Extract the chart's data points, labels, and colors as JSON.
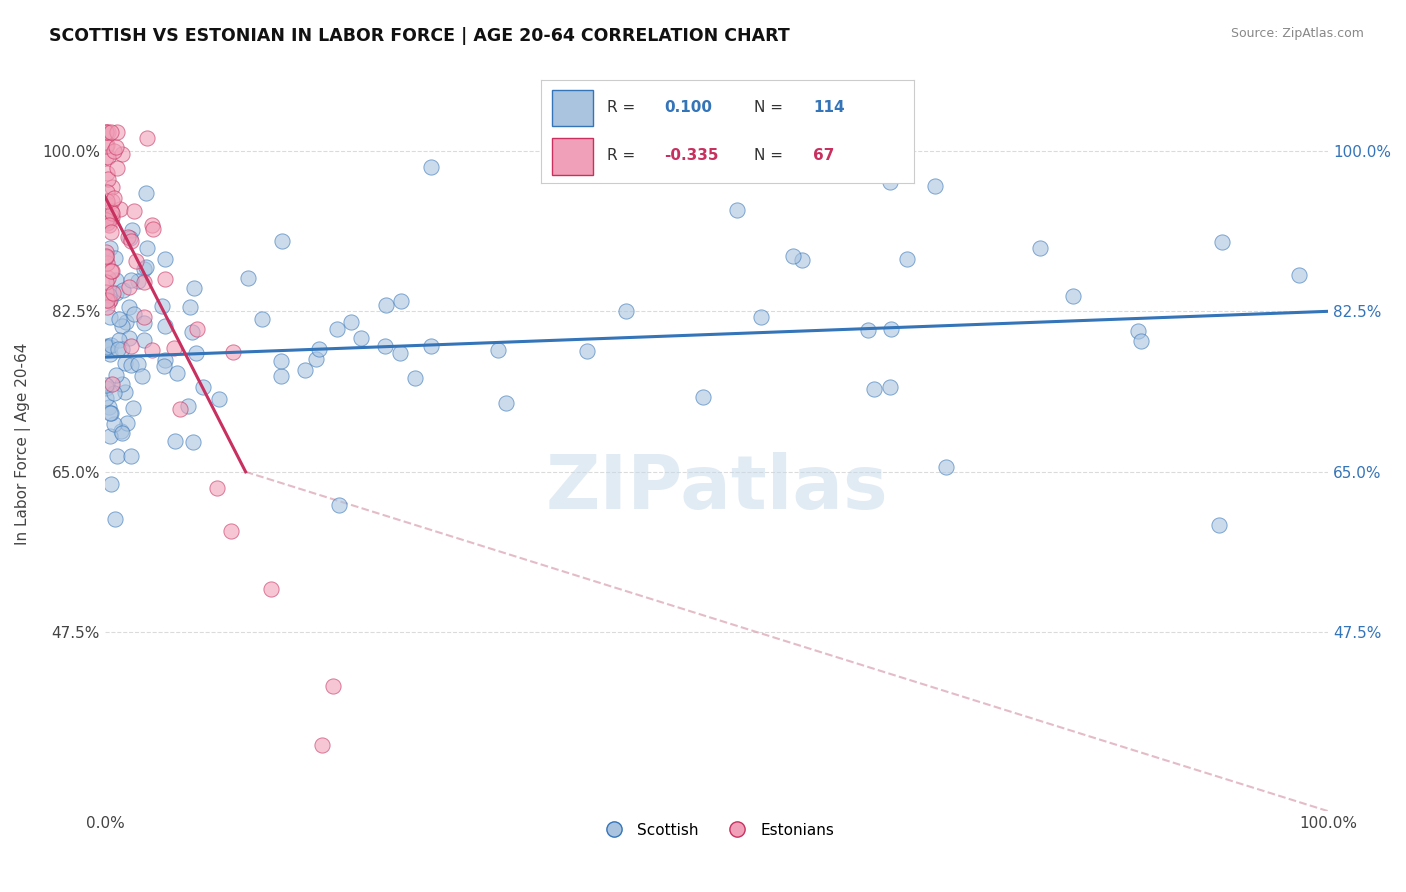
{
  "title": "SCOTTISH VS ESTONIAN IN LABOR FORCE | AGE 20-64 CORRELATION CHART",
  "source_text": "Source: ZipAtlas.com",
  "ylabel": "In Labor Force | Age 20-64",
  "xlim": [
    0.0,
    1.0
  ],
  "ylim": [
    0.28,
    1.08
  ],
  "x_tick_labels": [
    "0.0%",
    "100.0%"
  ],
  "y_tick_labels": [
    "47.5%",
    "65.0%",
    "82.5%",
    "100.0%"
  ],
  "y_tick_positions": [
    0.475,
    0.65,
    0.825,
    1.0
  ],
  "watermark": "ZIPatlas",
  "legend_entries": [
    {
      "label": "Scottish",
      "R": "0.100",
      "N": "114"
    },
    {
      "label": "Estonians",
      "R": "-0.335",
      "N": "67"
    }
  ],
  "scottish_trend": [
    0.0,
    0.775,
    1.0,
    0.825
  ],
  "estonian_trend_solid": [
    0.0,
    0.95,
    0.115,
    0.65
  ],
  "estonian_trend_dashed": [
    0.115,
    0.65,
    1.0,
    0.28
  ],
  "bg_color": "#ffffff",
  "scatter_color_scottish": "#aac4e0",
  "scatter_color_estonian": "#f0a0b8",
  "trend_color_scottish": "#3474b8",
  "trend_color_estonian": "#c83060",
  "trend_dashed_color": "#d8a0b0",
  "grid_color": "#d8d8d8"
}
